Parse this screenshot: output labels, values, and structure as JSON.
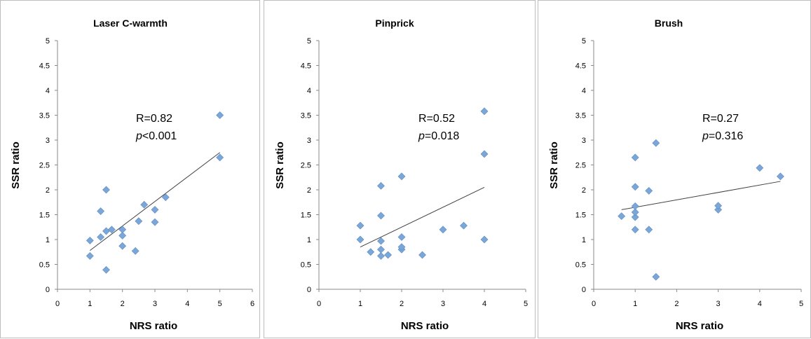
{
  "colors": {
    "marker": "#7aa6d8",
    "trendline": "#404040",
    "axis": "#8a8a8a"
  },
  "chart_data": [
    {
      "type": "scatter",
      "title": "Laser C-warmth",
      "xlabel": "NRS ratio",
      "ylabel": "SSR ratio",
      "xlim": [
        0,
        6
      ],
      "ylim": [
        0,
        5
      ],
      "xticks": [
        "0",
        "1",
        "2",
        "3",
        "4",
        "5",
        "6"
      ],
      "yticks": [
        "0",
        "0.5",
        "1",
        "1.5",
        "2",
        "2.5",
        "3",
        "3.5",
        "4",
        "4.5",
        "5"
      ],
      "r_text": "R=0.82",
      "p_symbol": "p",
      "p_text": "<0.001",
      "trend": {
        "x": [
          1,
          5
        ],
        "y": [
          0.78,
          2.75
        ]
      },
      "points": [
        {
          "x": 1,
          "y": 0.67
        },
        {
          "x": 1,
          "y": 0.98
        },
        {
          "x": 1.33,
          "y": 1.05
        },
        {
          "x": 1.33,
          "y": 1.57
        },
        {
          "x": 1.5,
          "y": 0.39
        },
        {
          "x": 1.5,
          "y": 1.17
        },
        {
          "x": 1.5,
          "y": 2.0
        },
        {
          "x": 1.67,
          "y": 1.2
        },
        {
          "x": 2,
          "y": 0.87
        },
        {
          "x": 2,
          "y": 1.08
        },
        {
          "x": 2,
          "y": 1.2
        },
        {
          "x": 2.4,
          "y": 0.77
        },
        {
          "x": 2.5,
          "y": 1.37
        },
        {
          "x": 2.67,
          "y": 1.7
        },
        {
          "x": 3,
          "y": 1.35
        },
        {
          "x": 3,
          "y": 1.6
        },
        {
          "x": 3.33,
          "y": 1.85
        },
        {
          "x": 5,
          "y": 2.65
        },
        {
          "x": 5,
          "y": 3.5
        }
      ]
    },
    {
      "type": "scatter",
      "title": "Pinprick",
      "xlabel": "NRS ratio",
      "ylabel": "SSR ratio",
      "xlim": [
        0,
        5
      ],
      "ylim": [
        0,
        5
      ],
      "xticks": [
        "0",
        "1",
        "2",
        "3",
        "4",
        "5"
      ],
      "yticks": [
        "0",
        "0.5",
        "1",
        "1.5",
        "2",
        "2.5",
        "3",
        "3.5",
        "4",
        "4.5",
        "5"
      ],
      "r_text": "R=0.52",
      "p_symbol": "p",
      "p_text": "=0.018",
      "trend": {
        "x": [
          1,
          4
        ],
        "y": [
          0.85,
          2.05
        ]
      },
      "points": [
        {
          "x": 1,
          "y": 1.0
        },
        {
          "x": 1,
          "y": 1.28
        },
        {
          "x": 1.25,
          "y": 0.75
        },
        {
          "x": 1.5,
          "y": 0.67
        },
        {
          "x": 1.5,
          "y": 0.8
        },
        {
          "x": 1.5,
          "y": 0.97
        },
        {
          "x": 1.5,
          "y": 1.48
        },
        {
          "x": 1.5,
          "y": 2.08
        },
        {
          "x": 1.67,
          "y": 0.69
        },
        {
          "x": 2,
          "y": 0.8
        },
        {
          "x": 2,
          "y": 0.85
        },
        {
          "x": 2,
          "y": 1.05
        },
        {
          "x": 2,
          "y": 2.27
        },
        {
          "x": 2.5,
          "y": 0.69
        },
        {
          "x": 3,
          "y": 1.2
        },
        {
          "x": 3.5,
          "y": 1.28
        },
        {
          "x": 4,
          "y": 1.0
        },
        {
          "x": 4,
          "y": 2.72
        },
        {
          "x": 4,
          "y": 3.58
        }
      ]
    },
    {
      "type": "scatter",
      "title": "Brush",
      "xlabel": "NRS ratio",
      "ylabel": "SSR ratio",
      "xlim": [
        0,
        5
      ],
      "ylim": [
        0,
        5
      ],
      "xticks": [
        "0",
        "1",
        "2",
        "3",
        "4",
        "5"
      ],
      "yticks": [
        "0",
        "0.5",
        "1",
        "1.5",
        "2",
        "2.5",
        "3",
        "3.5",
        "4",
        "4.5",
        "5"
      ],
      "r_text": "R=0.27",
      "p_symbol": "p",
      "p_text": "=0.316",
      "trend": {
        "x": [
          0.67,
          4.5
        ],
        "y": [
          1.6,
          2.17
        ]
      },
      "points": [
        {
          "x": 0.67,
          "y": 1.47
        },
        {
          "x": 1,
          "y": 1.2
        },
        {
          "x": 1,
          "y": 1.45
        },
        {
          "x": 1,
          "y": 1.55
        },
        {
          "x": 1,
          "y": 1.67
        },
        {
          "x": 1,
          "y": 2.06
        },
        {
          "x": 1,
          "y": 2.65
        },
        {
          "x": 1.33,
          "y": 1.2
        },
        {
          "x": 1.33,
          "y": 1.98
        },
        {
          "x": 1.5,
          "y": 0.25
        },
        {
          "x": 1.5,
          "y": 2.94
        },
        {
          "x": 3,
          "y": 1.6
        },
        {
          "x": 3,
          "y": 1.68
        },
        {
          "x": 4,
          "y": 2.44
        },
        {
          "x": 4.5,
          "y": 2.27
        }
      ]
    }
  ]
}
